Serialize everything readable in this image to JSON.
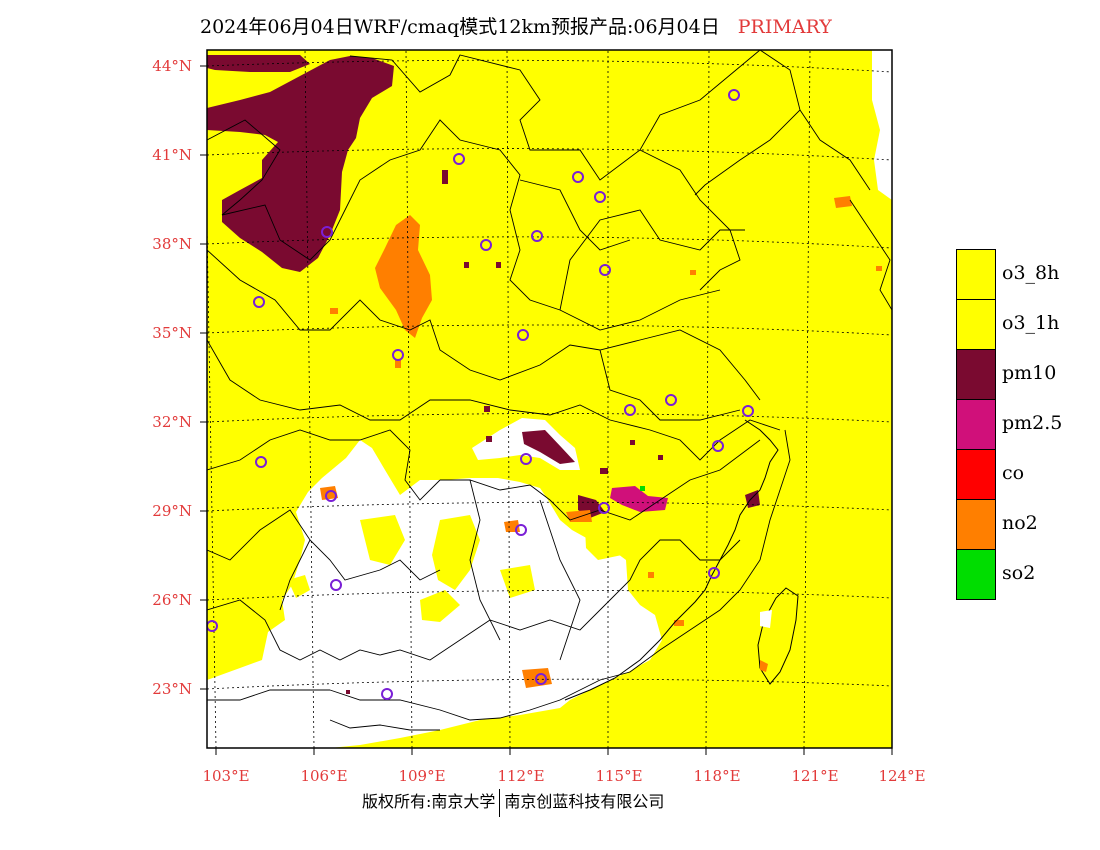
{
  "title": {
    "main": "2024年06月04日WRF/cmaq模式12km预报产品:06月04日",
    "tag": "PRIMARY"
  },
  "axes": {
    "lat_labels": [
      "44°N",
      "41°N",
      "38°N",
      "35°N",
      "32°N",
      "29°N",
      "26°N",
      "23°N"
    ],
    "lon_labels": [
      "103°E",
      "106°E",
      "109°E",
      "112°E",
      "115°E",
      "118°E",
      "121°E",
      "124°E"
    ]
  },
  "legend": {
    "items": [
      {
        "label": "o3_8h",
        "color": "#ffff00"
      },
      {
        "label": "o3_1h",
        "color": "#ffff00"
      },
      {
        "label": "pm10",
        "color": "#7a0a30"
      },
      {
        "label": "pm2.5",
        "color": "#d0107a"
      },
      {
        "label": "co",
        "color": "#ff0000"
      },
      {
        "label": "no2",
        "color": "#ff7f00"
      },
      {
        "label": "so2",
        "color": "#00dd00"
      }
    ]
  },
  "copyright": {
    "left": "版权所有:南京大学",
    "right": "南京创蓝科技有限公司"
  },
  "colors": {
    "o3": "#ffff00",
    "pm10": "#7a0a30",
    "pm25": "#d0107a",
    "no2": "#ff7f00",
    "so2": "#00dd00",
    "label": "#e23a3a",
    "city_marker": "#7a1fd6"
  }
}
